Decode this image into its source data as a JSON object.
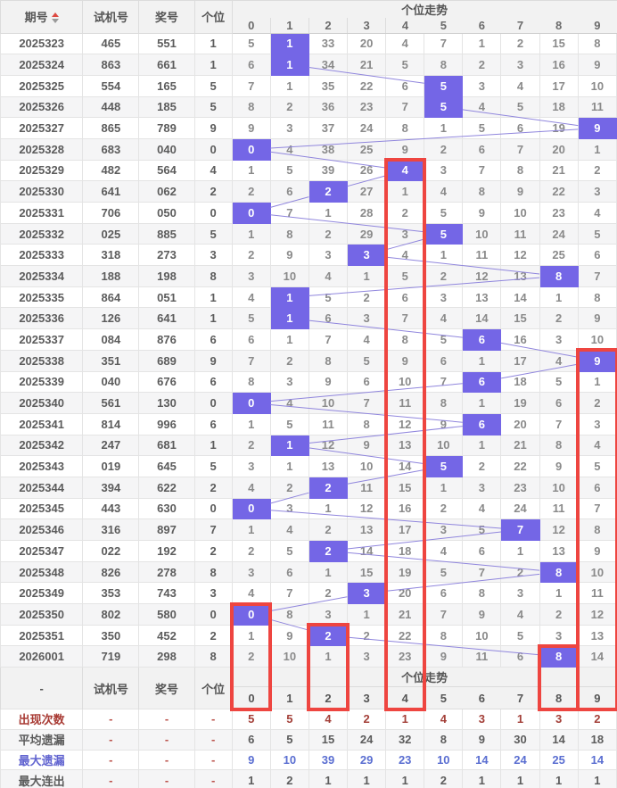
{
  "columns": {
    "issue": "期号",
    "test": "试机号",
    "prize": "奖号",
    "units": "个位"
  },
  "trend": {
    "title": "个位走势",
    "digits": [
      "0",
      "1",
      "2",
      "3",
      "4",
      "5",
      "6",
      "7",
      "8",
      "9"
    ]
  },
  "mid_header": {
    "issue_label": "-"
  },
  "sort_icon": "sort-asc-desc",
  "rows": [
    {
      "issue": "2025323",
      "test": "465",
      "prize": "551",
      "units": "1",
      "hit": 1,
      "cells": [
        "5",
        "1",
        "33",
        "20",
        "4",
        "7",
        "1",
        "2",
        "15",
        "8"
      ]
    },
    {
      "issue": "2025324",
      "test": "863",
      "prize": "661",
      "units": "1",
      "hit": 1,
      "cells": [
        "6",
        "1",
        "34",
        "21",
        "5",
        "8",
        "2",
        "3",
        "16",
        "9"
      ]
    },
    {
      "issue": "2025325",
      "test": "554",
      "prize": "165",
      "units": "5",
      "hit": 5,
      "cells": [
        "7",
        "1",
        "35",
        "22",
        "6",
        "5",
        "3",
        "4",
        "17",
        "10"
      ]
    },
    {
      "issue": "2025326",
      "test": "448",
      "prize": "185",
      "units": "5",
      "hit": 5,
      "cells": [
        "8",
        "2",
        "36",
        "23",
        "7",
        "5",
        "4",
        "5",
        "18",
        "11"
      ]
    },
    {
      "issue": "2025327",
      "test": "865",
      "prize": "789",
      "units": "9",
      "hit": 9,
      "cells": [
        "9",
        "3",
        "37",
        "24",
        "8",
        "1",
        "5",
        "6",
        "19",
        "9"
      ]
    },
    {
      "issue": "2025328",
      "test": "683",
      "prize": "040",
      "units": "0",
      "hit": 0,
      "cells": [
        "0",
        "4",
        "38",
        "25",
        "9",
        "2",
        "6",
        "7",
        "20",
        "1"
      ]
    },
    {
      "issue": "2025329",
      "test": "482",
      "prize": "564",
      "units": "4",
      "hit": 4,
      "cells": [
        "1",
        "5",
        "39",
        "26",
        "4",
        "3",
        "7",
        "8",
        "21",
        "2"
      ]
    },
    {
      "issue": "2025330",
      "test": "641",
      "prize": "062",
      "units": "2",
      "hit": 2,
      "cells": [
        "2",
        "6",
        "2",
        "27",
        "1",
        "4",
        "8",
        "9",
        "22",
        "3"
      ]
    },
    {
      "issue": "2025331",
      "test": "706",
      "prize": "050",
      "units": "0",
      "hit": 0,
      "cells": [
        "0",
        "7",
        "1",
        "28",
        "2",
        "5",
        "9",
        "10",
        "23",
        "4"
      ]
    },
    {
      "issue": "2025332",
      "test": "025",
      "prize": "885",
      "units": "5",
      "hit": 5,
      "cells": [
        "1",
        "8",
        "2",
        "29",
        "3",
        "5",
        "10",
        "11",
        "24",
        "5"
      ]
    },
    {
      "issue": "2025333",
      "test": "318",
      "prize": "273",
      "units": "3",
      "hit": 3,
      "cells": [
        "2",
        "9",
        "3",
        "3",
        "4",
        "1",
        "11",
        "12",
        "25",
        "6"
      ]
    },
    {
      "issue": "2025334",
      "test": "188",
      "prize": "198",
      "units": "8",
      "hit": 8,
      "cells": [
        "3",
        "10",
        "4",
        "1",
        "5",
        "2",
        "12",
        "13",
        "8",
        "7"
      ]
    },
    {
      "issue": "2025335",
      "test": "864",
      "prize": "051",
      "units": "1",
      "hit": 1,
      "cells": [
        "4",
        "1",
        "5",
        "2",
        "6",
        "3",
        "13",
        "14",
        "1",
        "8"
      ]
    },
    {
      "issue": "2025336",
      "test": "126",
      "prize": "641",
      "units": "1",
      "hit": 1,
      "cells": [
        "5",
        "1",
        "6",
        "3",
        "7",
        "4",
        "14",
        "15",
        "2",
        "9"
      ]
    },
    {
      "issue": "2025337",
      "test": "084",
      "prize": "876",
      "units": "6",
      "hit": 6,
      "cells": [
        "6",
        "1",
        "7",
        "4",
        "8",
        "5",
        "6",
        "16",
        "3",
        "10"
      ]
    },
    {
      "issue": "2025338",
      "test": "351",
      "prize": "689",
      "units": "9",
      "hit": 9,
      "cells": [
        "7",
        "2",
        "8",
        "5",
        "9",
        "6",
        "1",
        "17",
        "4",
        "9"
      ]
    },
    {
      "issue": "2025339",
      "test": "040",
      "prize": "676",
      "units": "6",
      "hit": 6,
      "cells": [
        "8",
        "3",
        "9",
        "6",
        "10",
        "7",
        "6",
        "18",
        "5",
        "1"
      ]
    },
    {
      "issue": "2025340",
      "test": "561",
      "prize": "130",
      "units": "0",
      "hit": 0,
      "cells": [
        "0",
        "4",
        "10",
        "7",
        "11",
        "8",
        "1",
        "19",
        "6",
        "2"
      ]
    },
    {
      "issue": "2025341",
      "test": "814",
      "prize": "996",
      "units": "6",
      "hit": 6,
      "cells": [
        "1",
        "5",
        "11",
        "8",
        "12",
        "9",
        "6",
        "20",
        "7",
        "3"
      ]
    },
    {
      "issue": "2025342",
      "test": "247",
      "prize": "681",
      "units": "1",
      "hit": 1,
      "cells": [
        "2",
        "1",
        "12",
        "9",
        "13",
        "10",
        "1",
        "21",
        "8",
        "4"
      ]
    },
    {
      "issue": "2025343",
      "test": "019",
      "prize": "645",
      "units": "5",
      "hit": 5,
      "cells": [
        "3",
        "1",
        "13",
        "10",
        "14",
        "5",
        "2",
        "22",
        "9",
        "5"
      ]
    },
    {
      "issue": "2025344",
      "test": "394",
      "prize": "622",
      "units": "2",
      "hit": 2,
      "cells": [
        "4",
        "2",
        "2",
        "11",
        "15",
        "1",
        "3",
        "23",
        "10",
        "6"
      ]
    },
    {
      "issue": "2025345",
      "test": "443",
      "prize": "630",
      "units": "0",
      "hit": 0,
      "cells": [
        "0",
        "3",
        "1",
        "12",
        "16",
        "2",
        "4",
        "24",
        "11",
        "7"
      ]
    },
    {
      "issue": "2025346",
      "test": "316",
      "prize": "897",
      "units": "7",
      "hit": 7,
      "cells": [
        "1",
        "4",
        "2",
        "13",
        "17",
        "3",
        "5",
        "7",
        "12",
        "8"
      ]
    },
    {
      "issue": "2025347",
      "test": "022",
      "prize": "192",
      "units": "2",
      "hit": 2,
      "cells": [
        "2",
        "5",
        "2",
        "14",
        "18",
        "4",
        "6",
        "1",
        "13",
        "9"
      ]
    },
    {
      "issue": "2025348",
      "test": "826",
      "prize": "278",
      "units": "8",
      "hit": 8,
      "cells": [
        "3",
        "6",
        "1",
        "15",
        "19",
        "5",
        "7",
        "2",
        "8",
        "10"
      ]
    },
    {
      "issue": "2025349",
      "test": "353",
      "prize": "743",
      "units": "3",
      "hit": 3,
      "cells": [
        "4",
        "7",
        "2",
        "3",
        "20",
        "6",
        "8",
        "3",
        "1",
        "11"
      ]
    },
    {
      "issue": "2025350",
      "test": "802",
      "prize": "580",
      "units": "0",
      "hit": 0,
      "cells": [
        "0",
        "8",
        "3",
        "1",
        "21",
        "7",
        "9",
        "4",
        "2",
        "12"
      ]
    },
    {
      "issue": "2025351",
      "test": "350",
      "prize": "452",
      "units": "2",
      "hit": 2,
      "cells": [
        "1",
        "9",
        "2",
        "2",
        "22",
        "8",
        "10",
        "5",
        "3",
        "13"
      ]
    },
    {
      "issue": "2026001",
      "test": "719",
      "prize": "298",
      "units": "8",
      "hit": 8,
      "cells": [
        "2",
        "10",
        "1",
        "3",
        "23",
        "9",
        "11",
        "6",
        "8",
        "14"
      ]
    }
  ],
  "summary_dash": "-",
  "summary": [
    {
      "label": "出现次数",
      "style": "red",
      "link": true,
      "values": [
        "5",
        "5",
        "4",
        "2",
        "1",
        "4",
        "3",
        "1",
        "3",
        "2"
      ]
    },
    {
      "label": "平均遗漏",
      "style": "gray",
      "link": false,
      "values": [
        "6",
        "5",
        "15",
        "24",
        "32",
        "8",
        "9",
        "30",
        "14",
        "18"
      ]
    },
    {
      "label": "最大遗漏",
      "style": "blue",
      "link": true,
      "values": [
        "9",
        "10",
        "39",
        "29",
        "23",
        "10",
        "14",
        "24",
        "25",
        "14"
      ]
    },
    {
      "label": "最大连出",
      "style": "gray",
      "link": false,
      "values": [
        "1",
        "2",
        "1",
        "1",
        "1",
        "2",
        "1",
        "1",
        "1",
        "1"
      ]
    }
  ],
  "red_boxes": [
    {
      "col": 0,
      "from_row": 27
    },
    {
      "col": 2,
      "from_row": 28
    },
    {
      "col": 4,
      "from_row": 6
    },
    {
      "col": 8,
      "from_row": 29
    },
    {
      "col": 9,
      "from_row": 15
    }
  ],
  "colors": {
    "accent_hit": "#7466e6",
    "trend_line": "#9086dd",
    "red_box": "#ee4540",
    "header_bg": "#f2f2f2",
    "occurrence_text": "#a33f38",
    "max_miss_text": "#5a6ed1"
  }
}
